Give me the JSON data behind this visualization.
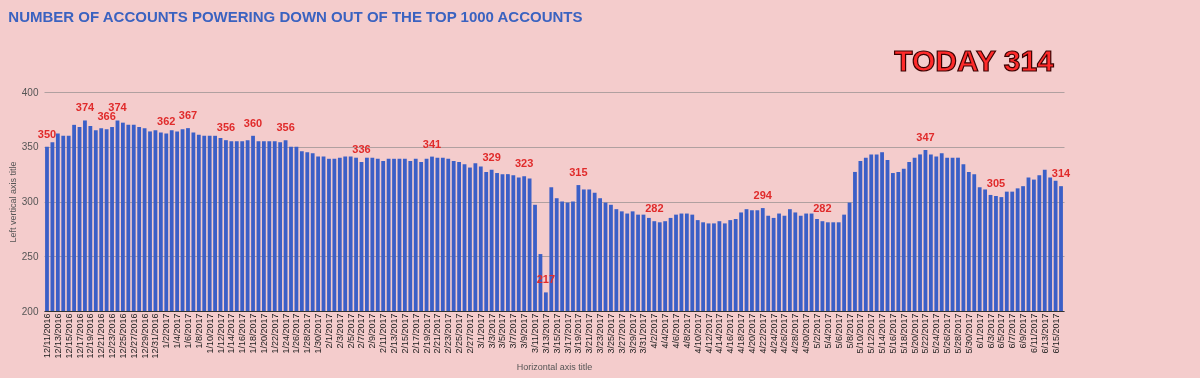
{
  "chart_data": {
    "type": "bar",
    "title": "NUMBER OF ACCOUNTS POWERING DOWN OUT OF THE TOP 1000 ACCOUNTS",
    "xlabel": "Horizontal axis title",
    "ylabel": "Left vertical axis title",
    "annotations": [
      "TODAY  314"
    ],
    "categories": [
      "12/11/2016",
      null,
      "12/13/2016",
      null,
      "12/15/2016",
      null,
      "12/17/2016",
      null,
      "12/19/2016",
      null,
      "12/21/2016",
      null,
      "12/23/2016",
      null,
      "12/25/2016",
      null,
      "12/27/2016",
      null,
      "12/29/2016",
      null,
      "12/31/2016",
      null,
      "1/2/2017",
      null,
      "1/4/2017",
      null,
      "1/6/2017",
      null,
      "1/8/2017",
      null,
      "1/10/2017",
      null,
      "1/12/2017",
      null,
      "1/14/2017",
      null,
      "1/16/2017",
      null,
      "1/18/2017",
      null,
      "1/20/2017",
      null,
      "1/22/2017",
      null,
      "1/24/2017",
      null,
      "1/26/2017",
      null,
      "1/28/2017",
      null,
      "1/30/2017",
      null,
      "2/1/2017",
      null,
      "2/3/2017",
      null,
      "2/5/2017",
      null,
      "2/7/2017",
      null,
      "2/9/2017",
      null,
      "2/11/2017",
      null,
      "2/13/2017",
      null,
      "2/15/2017",
      null,
      "2/17/2017",
      null,
      "2/19/2017",
      null,
      "2/21/2017",
      null,
      "2/23/2017",
      null,
      "2/25/2017",
      null,
      "2/27/2017",
      null,
      "3/1/2017",
      null,
      "3/3/2017",
      null,
      "3/5/2017",
      null,
      "3/7/2017",
      null,
      "3/9/2017",
      null,
      "3/11/2017",
      null,
      "3/13/2017",
      null,
      "3/15/2017",
      null,
      "3/17/2017",
      null,
      "3/19/2017",
      null,
      "3/21/2017",
      null,
      "3/23/2017",
      null,
      "3/25/2017",
      null,
      "3/27/2017",
      null,
      "3/29/2017",
      null,
      "3/31/2017",
      null,
      "4/2/2017",
      null,
      "4/4/2017",
      null,
      "4/6/2017",
      null,
      "4/8/2017",
      null,
      "4/10/2017",
      null,
      "4/12/2017",
      null,
      "4/14/2017",
      null,
      "4/16/2017",
      null,
      "4/18/2017",
      null,
      "4/20/2017",
      null,
      "4/22/2017",
      null,
      "4/24/2017",
      null,
      "4/26/2017",
      null,
      "4/28/2017",
      null,
      "4/30/2017",
      null,
      "5/2/2017",
      null,
      "5/4/2017",
      null,
      "5/6/2017",
      null,
      "5/8/2017",
      null,
      "5/10/2017",
      null,
      "5/12/2017",
      null,
      "5/14/2017",
      null,
      "5/16/2017",
      null,
      "5/18/2017",
      null,
      "5/20/2017",
      null,
      "5/22/2017",
      null,
      "5/24/2017",
      null,
      "5/26/2017",
      null,
      "5/28/2017",
      null,
      "5/30/2017",
      null,
      "6/1/2017",
      null,
      "6/3/2017",
      null,
      "6/5/2017",
      null,
      "6/7/2017",
      null,
      "6/9/2017",
      null,
      "6/11/2017",
      null,
      "6/13/2017",
      null,
      "6/15/2017",
      null
    ],
    "values": [
      350,
      354,
      362,
      360,
      360,
      370,
      368,
      374,
      369,
      365,
      367,
      366,
      368,
      374,
      372,
      370,
      370,
      368,
      367,
      364,
      365,
      363,
      362,
      365,
      364,
      366,
      367,
      363,
      361,
      360,
      360,
      360,
      358,
      356,
      355,
      355,
      355,
      356,
      360,
      355,
      355,
      355,
      355,
      354,
      356,
      350,
      350,
      346,
      345,
      344,
      341,
      341,
      339,
      339,
      340,
      341,
      341,
      340,
      336,
      340,
      340,
      339,
      337,
      339,
      339,
      339,
      339,
      337,
      339,
      336,
      339,
      341,
      340,
      340,
      339,
      337,
      336,
      334,
      331,
      335,
      332,
      327,
      329,
      326,
      325,
      325,
      324,
      322,
      323,
      321,
      297,
      252,
      217,
      313,
      303,
      300,
      299,
      300,
      315,
      311,
      311,
      308,
      303,
      299,
      297,
      293,
      291,
      289,
      291,
      288,
      288,
      285,
      282,
      281,
      282,
      285,
      288,
      289,
      289,
      288,
      283,
      281,
      280,
      280,
      282,
      280,
      283,
      284,
      290,
      293,
      292,
      292,
      294,
      287,
      285,
      289,
      287,
      293,
      290,
      287,
      289,
      289,
      284,
      282,
      281,
      281,
      281,
      288,
      299,
      327,
      337,
      340,
      343,
      343,
      345,
      338,
      326,
      327,
      330,
      336,
      340,
      343,
      347,
      343,
      341,
      344,
      340,
      340,
      340,
      334,
      327,
      325,
      313,
      311,
      306,
      305,
      304,
      309,
      309,
      312,
      314,
      322,
      320,
      324,
      329,
      322,
      319,
      314
    ],
    "value_labels": [
      "350",
      null,
      null,
      null,
      null,
      null,
      null,
      "374",
      null,
      null,
      null,
      "366",
      null,
      "374",
      null,
      null,
      null,
      null,
      null,
      null,
      null,
      null,
      "362",
      null,
      null,
      null,
      "367",
      null,
      null,
      null,
      null,
      null,
      null,
      "356",
      null,
      null,
      null,
      null,
      "360",
      null,
      null,
      null,
      null,
      null,
      "356",
      null,
      null,
      null,
      null,
      null,
      null,
      null,
      null,
      null,
      null,
      null,
      null,
      null,
      "336",
      null,
      null,
      null,
      null,
      null,
      null,
      null,
      null,
      null,
      null,
      null,
      null,
      "341",
      null,
      null,
      null,
      null,
      null,
      null,
      null,
      null,
      null,
      null,
      "329",
      null,
      null,
      null,
      null,
      null,
      "323",
      null,
      null,
      null,
      "217",
      null,
      null,
      null,
      null,
      null,
      "315",
      null,
      null,
      null,
      null,
      null,
      null,
      null,
      null,
      null,
      null,
      null,
      null,
      null,
      "282",
      null,
      null,
      null,
      null,
      null,
      null,
      null,
      null,
      null,
      null,
      null,
      null,
      null,
      null,
      null,
      null,
      null,
      null,
      null,
      "294",
      null,
      null,
      null,
      null,
      null,
      null,
      null,
      null,
      null,
      null,
      "282",
      null,
      null,
      null,
      null,
      null,
      null,
      null,
      null,
      null,
      null,
      null,
      null,
      null,
      null,
      null,
      null,
      null,
      null,
      "347",
      null,
      null,
      null,
      null,
      null,
      null,
      null,
      null,
      null,
      null,
      null,
      null,
      "305",
      null,
      null,
      null,
      null,
      null,
      null,
      null,
      null,
      null,
      null,
      null,
      "314"
    ],
    "color": "#3b5fc7",
    "ylim": [
      200,
      400
    ],
    "yticks": [
      200,
      250,
      300,
      350,
      400
    ],
    "grid": "y"
  }
}
